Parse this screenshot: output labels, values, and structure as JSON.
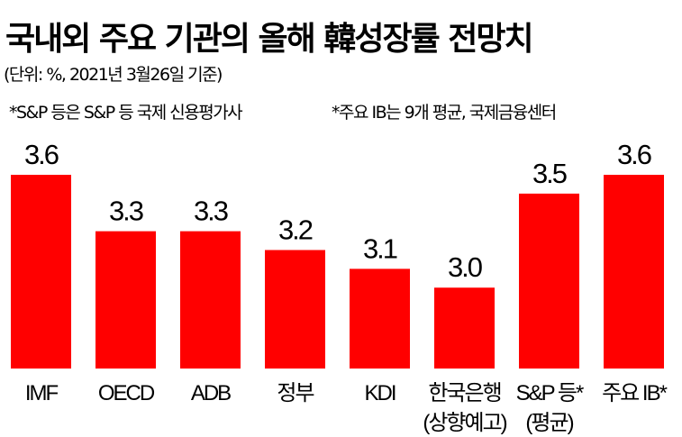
{
  "title": "국내외 주요 기관의 올해 韓성장률 전망치",
  "subtitle": "(단위: %, 2021년 3월26일 기준)",
  "notes": [
    "*S&P 등은 S&P 등 국제 신용평가사",
    "*주요 IB는 9개 평균, 국제금융센터"
  ],
  "colors": {
    "bar": "#ff0000"
  },
  "chart_data": {
    "type": "bar",
    "title": "국내외 주요 기관의 올해 韓성장률 전망치",
    "ylabel": "%",
    "categories": [
      [
        "IMF"
      ],
      [
        "OECD"
      ],
      [
        "ADB"
      ],
      [
        "정부"
      ],
      [
        "KDI"
      ],
      [
        "한국은행",
        "(상향예고)"
      ],
      [
        "S&P 등*",
        "(평균)"
      ],
      [
        "주요 IB*"
      ]
    ],
    "values": [
      3.6,
      3.3,
      3.3,
      3.2,
      3.1,
      3.0,
      3.5,
      3.6
    ],
    "value_labels": [
      "3.6",
      "3.3",
      "3.3",
      "3.2",
      "3.1",
      "3.0",
      "3.5",
      "3.6"
    ],
    "ylim": [
      2.57,
      3.6
    ],
    "grid": false
  }
}
